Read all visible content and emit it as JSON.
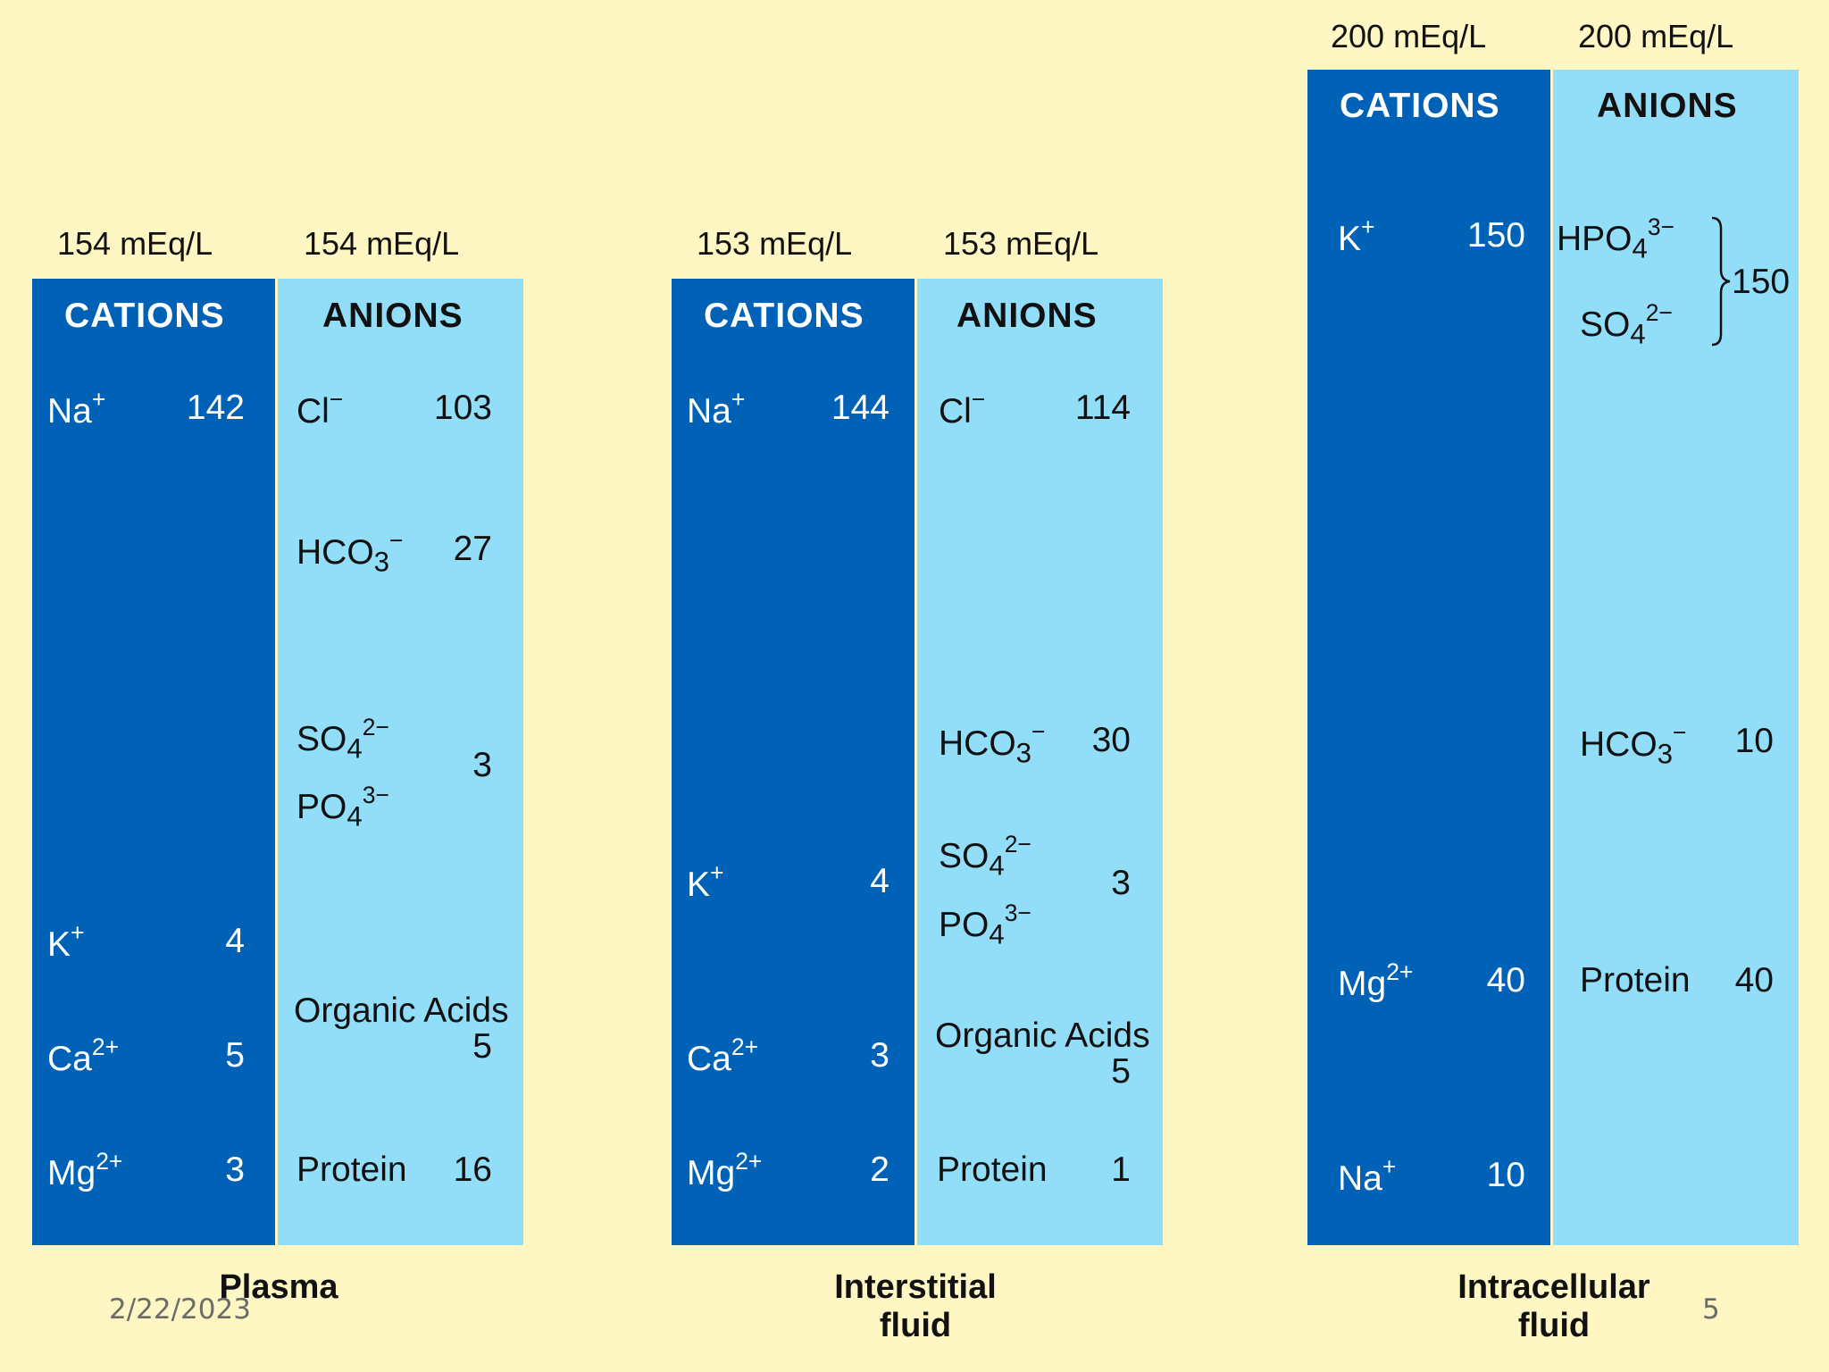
{
  "panels": [
    {
      "name": "Plasma",
      "cations_total": "154 mEq/L",
      "anions_total": "154 mEq/L",
      "cations_header": "CATIONS",
      "anions_header": "ANIONS",
      "cations": [
        {
          "ion": "Na",
          "charge": "+",
          "value": "142"
        },
        {
          "ion": "K",
          "charge": "+",
          "value": "4"
        },
        {
          "ion": "Ca",
          "charge": "2+",
          "value": "5"
        },
        {
          "ion": "Mg",
          "charge": "2+",
          "value": "3"
        }
      ],
      "anions": [
        {
          "ion": "Cl",
          "charge": "−",
          "value": "103"
        },
        {
          "ion": "HCO",
          "sub": "3",
          "charge": "−",
          "value": "27"
        },
        {
          "ion": "SO",
          "sub": "4",
          "charge": "2−"
        },
        {
          "ion": "PO",
          "sub": "4",
          "charge": "3−"
        },
        {
          "ion": "Organic Acids",
          "value": "5"
        },
        {
          "ion": "Protein",
          "value": "16"
        }
      ],
      "so4_po4_value": "3"
    },
    {
      "name": "Interstitial fluid",
      "cations_total": "153 mEq/L",
      "anions_total": "153 mEq/L",
      "cations_header": "CATIONS",
      "anions_header": "ANIONS",
      "cations": [
        {
          "ion": "Na",
          "charge": "+",
          "value": "144"
        },
        {
          "ion": "K",
          "charge": "+",
          "value": "4"
        },
        {
          "ion": "Ca",
          "charge": "2+",
          "value": "3"
        },
        {
          "ion": "Mg",
          "charge": "2+",
          "value": "2"
        }
      ],
      "anions": [
        {
          "ion": "Cl",
          "charge": "−",
          "value": "114"
        },
        {
          "ion": "HCO",
          "sub": "3",
          "charge": "−",
          "value": "30"
        },
        {
          "ion": "SO",
          "sub": "4",
          "charge": "2−"
        },
        {
          "ion": "PO",
          "sub": "4",
          "charge": "3−"
        },
        {
          "ion": "Organic Acids",
          "value": "5"
        },
        {
          "ion": "Protein",
          "value": "1"
        }
      ],
      "so4_po4_value": "3"
    },
    {
      "name": "Intracellular fluid",
      "cations_total": "200 mEq/L",
      "anions_total": "200 mEq/L",
      "cations_header": "CATIONS",
      "anions_header": "ANIONS",
      "cations": [
        {
          "ion": "K",
          "charge": "+",
          "value": "150"
        },
        {
          "ion": "Mg",
          "charge": "2+",
          "value": "40"
        },
        {
          "ion": "Na",
          "charge": "+",
          "value": "10"
        }
      ],
      "anions": [
        {
          "ion": "HPO",
          "sub": "4",
          "charge": "3−"
        },
        {
          "ion": "SO",
          "sub": "4",
          "charge": "2−"
        },
        {
          "ion": "HCO",
          "sub": "3",
          "charge": "−",
          "value": "10"
        },
        {
          "ion": "Protein",
          "value": "40"
        }
      ],
      "hpo4_so4_value": "150"
    }
  ],
  "labels": {
    "plasma": "Plasma",
    "interstitial_1": "Interstitial",
    "interstitial_2": "fluid",
    "intracellular_1": "Intracellular",
    "intracellular_2": "fluid"
  },
  "footer": {
    "date": "2/22/2023",
    "page": "5"
  },
  "colors": {
    "background": "#fef6c3",
    "cations": "#0062b6",
    "anions": "#92def9"
  }
}
